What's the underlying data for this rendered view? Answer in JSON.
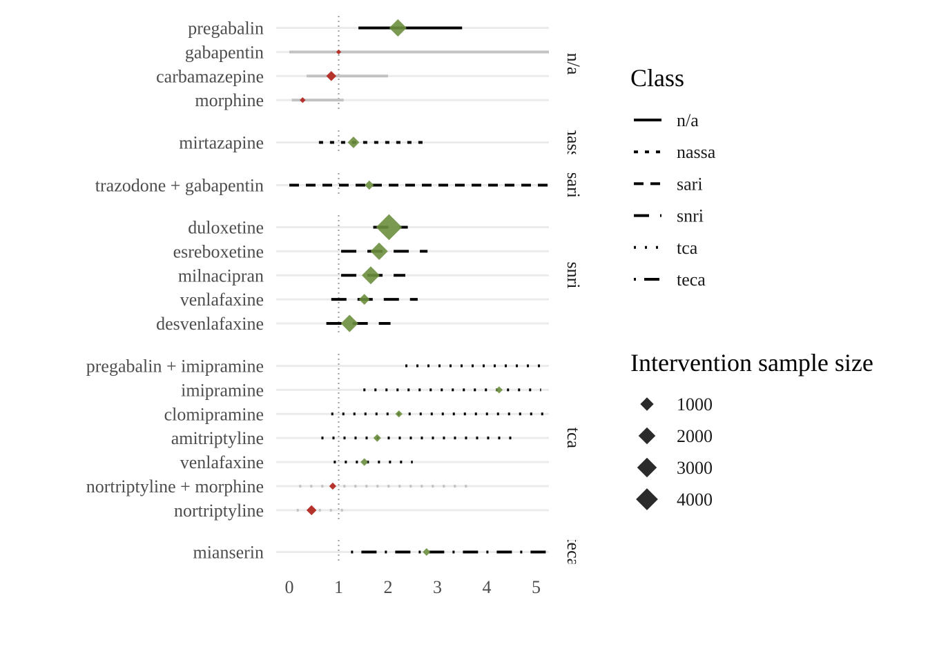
{
  "chart_data": {
    "type": "forest",
    "xlabel": "",
    "ylabel": "",
    "x_ticks": [
      "0",
      "1",
      "2",
      "3",
      "4",
      "5"
    ],
    "xlim": [
      -0.25,
      5.25
    ],
    "reference_line": 1,
    "grid": "horizontal",
    "legend_placement": "right",
    "colors": {
      "significant": "#6b8e3e",
      "not_significant": "#b5332a",
      "ci_significant": "#000000",
      "ci_not_significant": "#c2c2c2",
      "row_grid": "#ebebeb",
      "reference": "#999999"
    },
    "groups": [
      {
        "class": "n/a",
        "strip_label": "n/a",
        "rows": [
          {
            "label": "pregabalin",
            "estimate": 2.2,
            "lower": 1.4,
            "upper": 3.5,
            "sample_size": 1800,
            "significant": true
          },
          {
            "label": "gabapentin",
            "estimate": 1.0,
            "lower": 0.0,
            "upper": 5.3,
            "sample_size": 150,
            "significant": false
          },
          {
            "label": "carbamazepine",
            "estimate": 0.85,
            "lower": 0.35,
            "upper": 2.0,
            "sample_size": 600,
            "significant": false
          },
          {
            "label": "morphine",
            "estimate": 0.27,
            "lower": 0.05,
            "upper": 1.1,
            "sample_size": 200,
            "significant": false
          }
        ]
      },
      {
        "class": "nassa",
        "strip_label": "nass",
        "rows": [
          {
            "label": "mirtazapine",
            "estimate": 1.3,
            "lower": 0.6,
            "upper": 2.75,
            "sample_size": 800,
            "significant": true
          }
        ]
      },
      {
        "class": "sari",
        "strip_label": "sari",
        "rows": [
          {
            "label": "trazodone + gabapentin",
            "estimate": 1.62,
            "lower": 0.0,
            "upper": 5.3,
            "sample_size": 500,
            "significant": true
          }
        ]
      },
      {
        "class": "snri",
        "strip_label": "snri",
        "rows": [
          {
            "label": "duloxetine",
            "estimate": 2.02,
            "lower": 1.7,
            "upper": 2.4,
            "sample_size": 4000,
            "significant": true
          },
          {
            "label": "esreboxetine",
            "estimate": 1.82,
            "lower": 1.05,
            "upper": 2.8,
            "sample_size": 1800,
            "significant": true
          },
          {
            "label": "milnacipran",
            "estimate": 1.65,
            "lower": 1.05,
            "upper": 2.35,
            "sample_size": 1900,
            "significant": true
          },
          {
            "label": "venlafaxine",
            "estimate": 1.52,
            "lower": 0.85,
            "upper": 2.6,
            "sample_size": 700,
            "significant": true
          },
          {
            "label": "desvenlafaxine",
            "estimate": 1.22,
            "lower": 0.75,
            "upper": 2.05,
            "sample_size": 1800,
            "significant": true
          }
        ]
      },
      {
        "class": "tca",
        "strip_label": "tca",
        "rows": [
          {
            "label": "pregabalin + imipramine",
            "estimate": null,
            "lower": 2.35,
            "upper": 5.3,
            "sample_size": null,
            "significant": true
          },
          {
            "label": "imipramine",
            "estimate": 4.25,
            "lower": 1.5,
            "upper": 5.1,
            "sample_size": 300,
            "significant": true
          },
          {
            "label": "clomipramine",
            "estimate": 2.22,
            "lower": 0.85,
            "upper": 5.3,
            "sample_size": 300,
            "significant": true
          },
          {
            "label": "amitriptyline",
            "estimate": 1.78,
            "lower": 0.65,
            "upper": 4.55,
            "sample_size": 350,
            "significant": true
          },
          {
            "label": "venlafaxine",
            "estimate": 1.52,
            "lower": 0.9,
            "upper": 2.5,
            "sample_size": 350,
            "significant": true
          },
          {
            "label": "nortriptyline + morphine",
            "estimate": 0.88,
            "lower": 0.2,
            "upper": 3.6,
            "sample_size": 300,
            "significant": false
          },
          {
            "label": "nortriptyline",
            "estimate": 0.45,
            "lower": 0.15,
            "upper": 1.25,
            "sample_size": 600,
            "significant": false
          }
        ]
      },
      {
        "class": "teca",
        "strip_label": "teca",
        "rows": [
          {
            "label": "mianserin",
            "estimate": 2.78,
            "lower": 1.25,
            "upper": 5.3,
            "sample_size": 350,
            "significant": true
          }
        ]
      }
    ],
    "legend": {
      "class_title": "Class",
      "class_items": [
        {
          "label": "n/a",
          "dash": "solid"
        },
        {
          "label": "nassa",
          "dash": "dashed-short"
        },
        {
          "label": "sari",
          "dash": "dashed"
        },
        {
          "label": "snri",
          "dash": "longdash"
        },
        {
          "label": "tca",
          "dash": "dotted"
        },
        {
          "label": "teca",
          "dash": "dotdash"
        }
      ],
      "size_title": "Intervention sample size",
      "size_items": [
        {
          "label": "1000",
          "value": 1000
        },
        {
          "label": "2000",
          "value": 2000
        },
        {
          "label": "3000",
          "value": 3000
        },
        {
          "label": "4000",
          "value": 4000
        }
      ]
    }
  }
}
